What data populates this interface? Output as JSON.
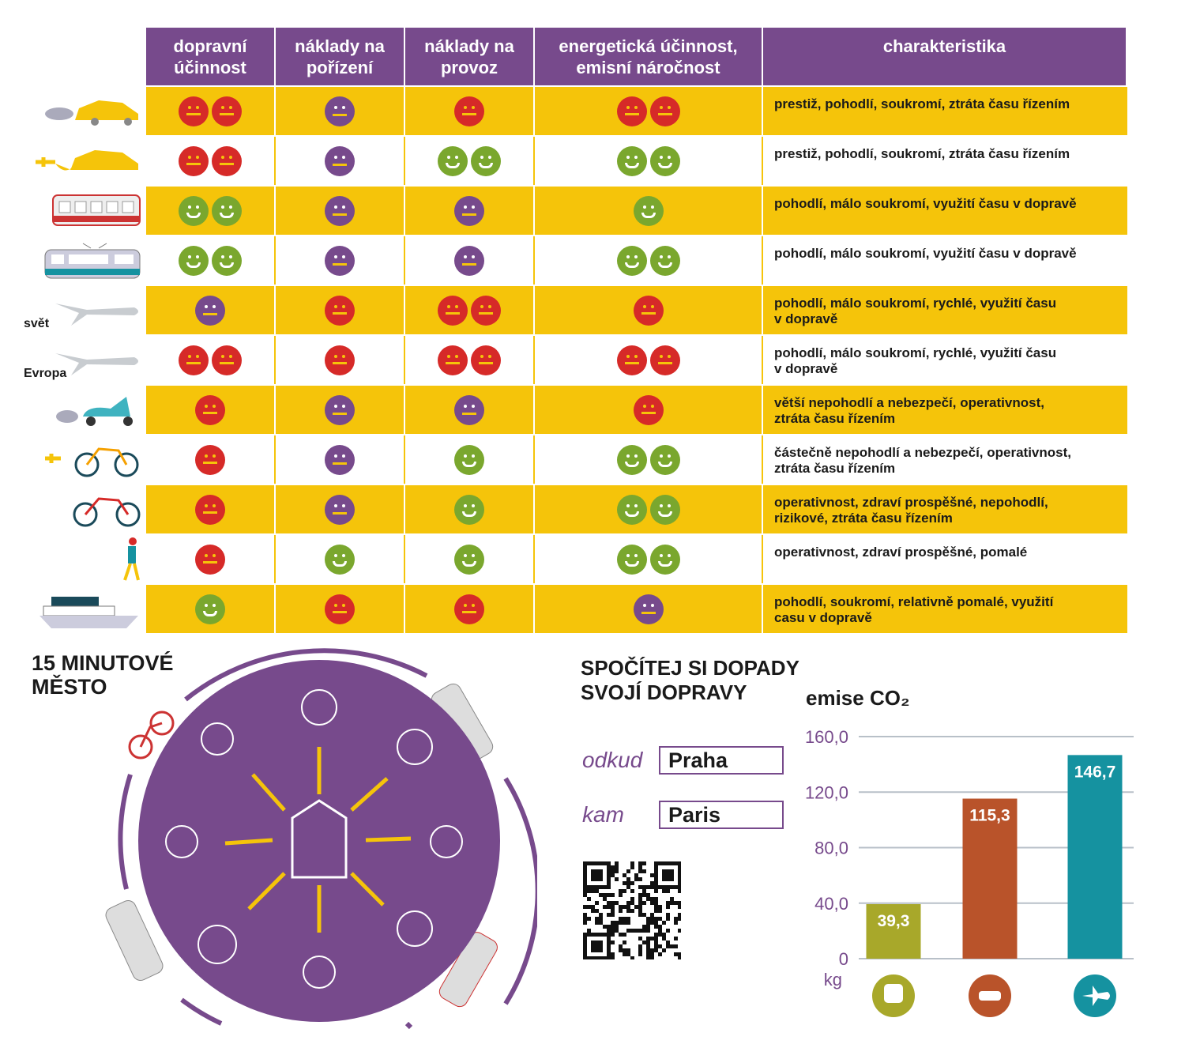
{
  "table": {
    "headers": [
      "dopravní\núčinnost",
      "náklady na\npořízení",
      "náklady na\nprovoz",
      "energetická účinnost,\nemisní náročnost",
      "charakteristika"
    ],
    "rows": [
      {
        "mode": "car",
        "label": "",
        "ratings": [
          [
            "bad",
            2
          ],
          [
            "neutral",
            1
          ],
          [
            "bad",
            1
          ],
          [
            "bad",
            2
          ]
        ],
        "text": "prestiž, pohodlí, soukromí, ztráta času řízením"
      },
      {
        "mode": "electric-car",
        "label": "",
        "ratings": [
          [
            "bad",
            2
          ],
          [
            "neutral",
            1
          ],
          [
            "good",
            2
          ],
          [
            "good",
            2
          ]
        ],
        "text": "prestiž, pohodlí, soukromí, ztráta času řízením"
      },
      {
        "mode": "train",
        "label": "",
        "ratings": [
          [
            "good",
            2
          ],
          [
            "neutral",
            1
          ],
          [
            "neutral",
            1
          ],
          [
            "good",
            1
          ]
        ],
        "text": "pohodlí, málo soukromí, využití času v dopravě"
      },
      {
        "mode": "tram",
        "label": "",
        "ratings": [
          [
            "good",
            2
          ],
          [
            "neutral",
            1
          ],
          [
            "neutral",
            1
          ],
          [
            "good",
            2
          ]
        ],
        "text": "pohodlí, málo soukromí, využití času v dopravě"
      },
      {
        "mode": "plane",
        "label": "svět",
        "ratings": [
          [
            "neutral",
            1
          ],
          [
            "bad",
            1
          ],
          [
            "bad",
            2
          ],
          [
            "bad",
            1
          ]
        ],
        "text": "pohodlí, málo soukromí, rychlé, využití času\nv dopravě"
      },
      {
        "mode": "plane",
        "label": "Evropa",
        "ratings": [
          [
            "bad",
            2
          ],
          [
            "bad",
            1
          ],
          [
            "bad",
            2
          ],
          [
            "bad",
            2
          ]
        ],
        "text": "pohodlí, málo soukromí, rychlé, využití času\nv dopravě"
      },
      {
        "mode": "scooter",
        "label": "",
        "ratings": [
          [
            "bad",
            1
          ],
          [
            "neutral",
            1
          ],
          [
            "neutral",
            1
          ],
          [
            "bad",
            1
          ]
        ],
        "text": "větší nepohodlí a nebezpečí, operativnost,\nztráta času řízením"
      },
      {
        "mode": "electric-bike",
        "label": "",
        "ratings": [
          [
            "bad",
            1
          ],
          [
            "neutral",
            1
          ],
          [
            "good",
            1
          ],
          [
            "good",
            2
          ]
        ],
        "text": "částečně nepohodlí a nebezpečí, operativnost,\nztráta času řízením"
      },
      {
        "mode": "bike",
        "label": "",
        "ratings": [
          [
            "bad",
            1
          ],
          [
            "neutral",
            1
          ],
          [
            "good",
            1
          ],
          [
            "good",
            2
          ]
        ],
        "text": "operativnost, zdraví prospěšné, nepohodlí,\nrizikové, ztráta času řízením"
      },
      {
        "mode": "walking",
        "label": "",
        "ratings": [
          [
            "bad",
            1
          ],
          [
            "good",
            1
          ],
          [
            "good",
            1
          ],
          [
            "good",
            2
          ]
        ],
        "text": "operativnost, zdraví prospěšné, pomalé"
      },
      {
        "mode": "ship",
        "label": "",
        "ratings": [
          [
            "good",
            1
          ],
          [
            "bad",
            1
          ],
          [
            "bad",
            1
          ],
          [
            "neutral",
            1
          ]
        ],
        "text": "pohodlí, soukromí, relativně pomalé, využití\ncasu v dopravě"
      }
    ]
  },
  "city": {
    "title": "15 MINUTOVÉ\nMĚSTO"
  },
  "calculator": {
    "title": "SPOČÍTEJ SI DOPADY\nSVOJÍ DOPRAVY",
    "from_label": "odkud",
    "from_value": "Praha",
    "to_label": "kam",
    "to_value": "Paris"
  },
  "chart_data": {
    "type": "bar",
    "title": "emise CO₂",
    "ylabel": "kg",
    "categories": [
      "vlak",
      "auto",
      "letadlo"
    ],
    "category_icons": [
      "train-icon",
      "car-icon",
      "plane-icon"
    ],
    "values": [
      39.3,
      115.3,
      146.7
    ],
    "value_labels": [
      "39,3",
      "115,3",
      "146,7"
    ],
    "colors": [
      "#a8a82a",
      "#b9532a",
      "#1592a0"
    ],
    "ylim": [
      0,
      160
    ],
    "yticks": [
      0,
      40,
      80,
      120,
      160
    ],
    "ytick_labels": [
      "0",
      "40,0",
      "80,0",
      "120,0",
      "160,0"
    ],
    "grid": true
  },
  "colors": {
    "purple": "#774a8c",
    "yellow": "#f5c40a",
    "bad": "#d62a28",
    "good": "#7aa72e"
  }
}
